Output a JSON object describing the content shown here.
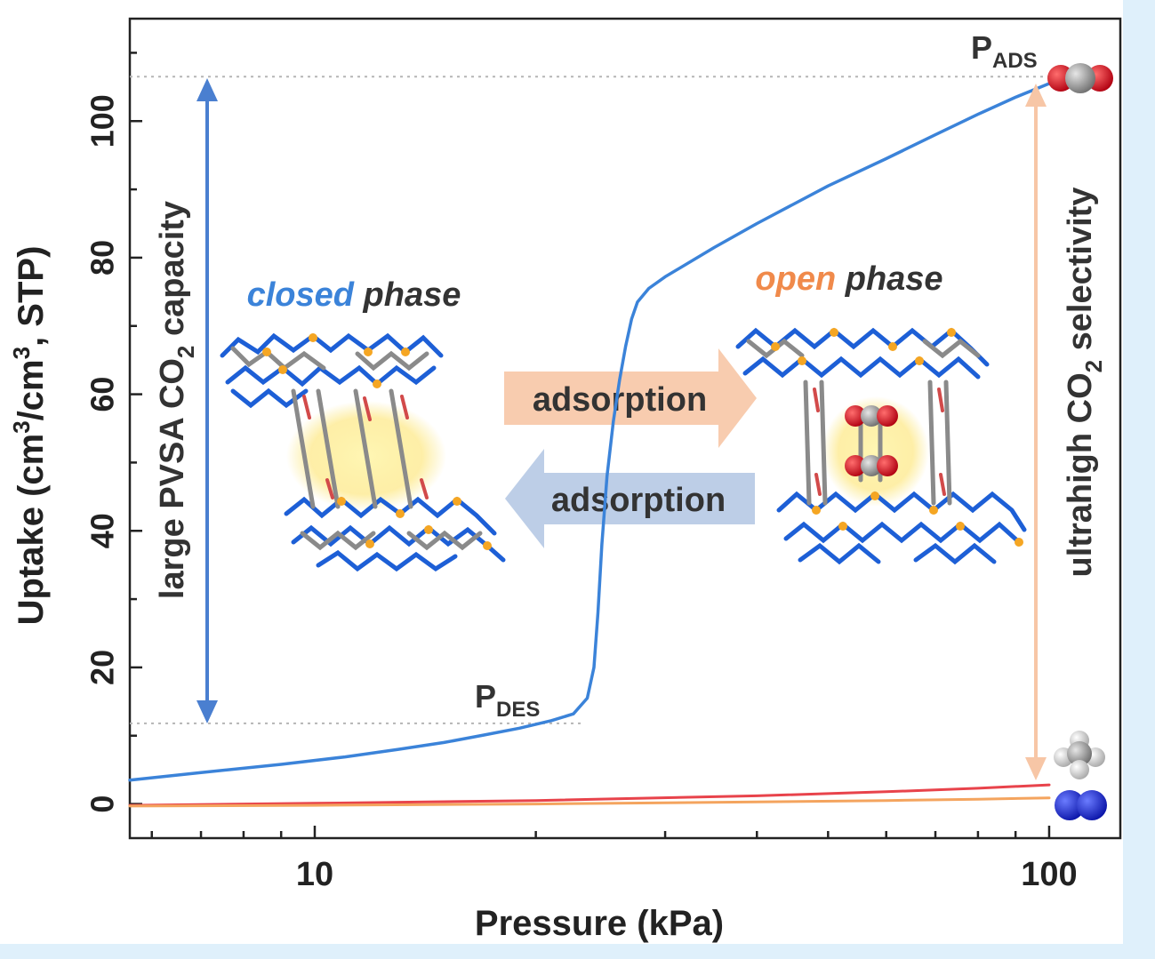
{
  "chart_data": {
    "type": "line",
    "xlabel": "Pressure (kPa)",
    "ylabel_parts": [
      "Uptake (cm",
      "3",
      "/cm",
      "3",
      ", STP)"
    ],
    "x_scale": "log",
    "xlim": [
      5.6,
      125
    ],
    "ylim": [
      -5,
      115
    ],
    "x_ticks": [
      10,
      100
    ],
    "y_ticks": [
      0,
      20,
      40,
      60,
      80,
      100
    ],
    "series": [
      {
        "color": "#3b83d9",
        "x": [
          5.6,
          7,
          9,
          11,
          13,
          15,
          17,
          19,
          21,
          22.5,
          23.5,
          24,
          24.3,
          24.6,
          25,
          25.5,
          26,
          26.5,
          27,
          27.5,
          28.5,
          30,
          35,
          40,
          50,
          60,
          70,
          80,
          90,
          100
        ],
        "y": [
          3.5,
          4.6,
          5.8,
          6.9,
          8.0,
          9.0,
          10.1,
          11.1,
          12.2,
          13.2,
          15.5,
          20,
          28,
          38,
          48,
          56,
          62,
          67,
          71,
          73.5,
          75.5,
          77.2,
          81.5,
          85,
          90.5,
          94.5,
          98,
          101,
          103.5,
          105.5
        ]
      },
      {
        "color": "#e8434b",
        "x": [
          5.6,
          10,
          20,
          40,
          60,
          80,
          100
        ],
        "y": [
          -0.2,
          0.1,
          0.5,
          1.2,
          1.8,
          2.3,
          2.8
        ]
      },
      {
        "color": "#f4a45e",
        "x": [
          5.6,
          10,
          20,
          40,
          60,
          80,
          100
        ],
        "y": [
          -0.3,
          -0.2,
          0.0,
          0.3,
          0.5,
          0.7,
          0.9
        ]
      }
    ],
    "reference_lines_y": [
      106.5,
      11.8
    ],
    "annotations": {
      "p_ads": {
        "main": "P",
        "sub": "ADS"
      },
      "p_des": {
        "main": "P",
        "sub": "DES"
      },
      "closed_phase": {
        "word1": "closed",
        "word2": " phase"
      },
      "open_phase": {
        "word1": "open",
        "word2": " phase"
      },
      "adsorption_right": "adsorption",
      "adsorption_left": "adsorption",
      "left_vertical_parts": [
        "large PVSA CO",
        "2",
        " capacity"
      ],
      "right_vertical_parts": [
        "ultrahigh CO",
        "2",
        " selectivity"
      ]
    },
    "colors": {
      "blue_accent": "#3b83d9",
      "orange_accent": "#f08a4b",
      "dark_text": "#333333"
    }
  }
}
